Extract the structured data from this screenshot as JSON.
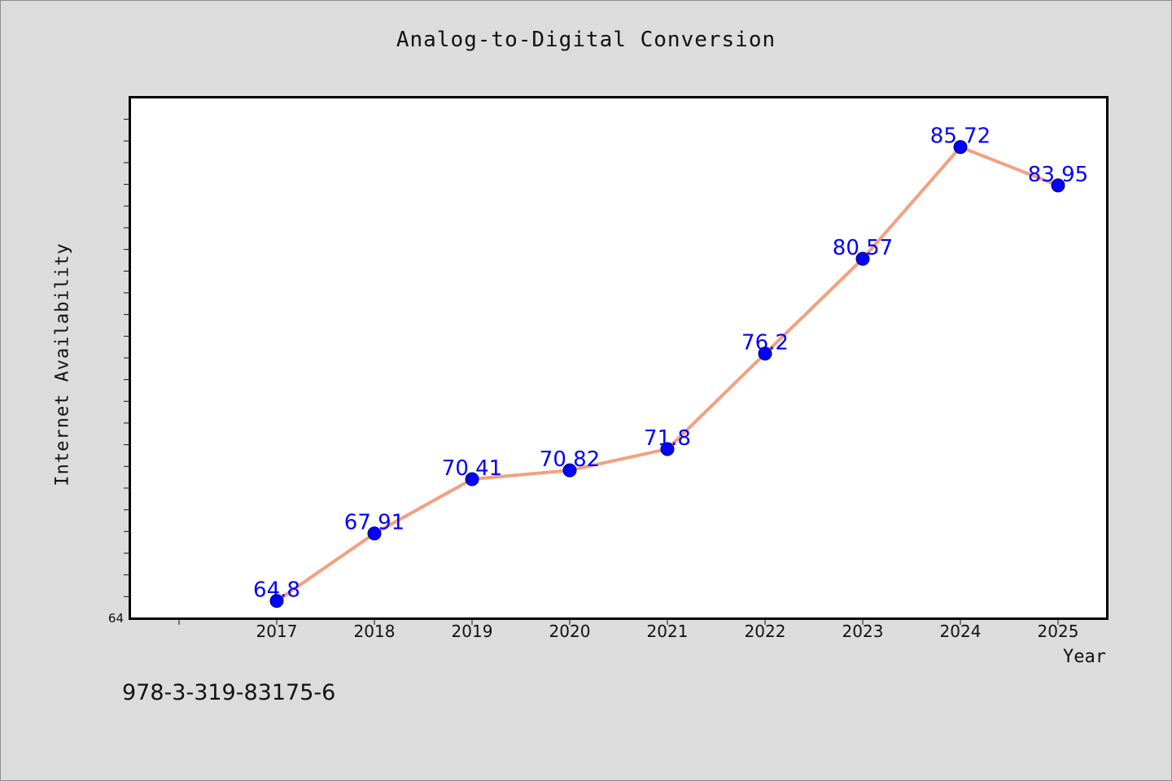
{
  "chart_data": {
    "type": "line",
    "title": "Analog-to-Digital Conversion",
    "xlabel": "Year",
    "ylabel": "Internet Availability",
    "categories": [
      "2017",
      "2018",
      "2019",
      "2020",
      "2021",
      "2022",
      "2023",
      "2024",
      "2025"
    ],
    "values": [
      64.8,
      67.91,
      70.41,
      70.82,
      71.8,
      76.2,
      80.57,
      85.72,
      83.95
    ],
    "data_labels": [
      "64.8",
      "67.91",
      "70.41",
      "70.82",
      "71.8",
      "76.2",
      "80.57",
      "85.72",
      "83.95"
    ],
    "ylim": [
      64,
      88
    ],
    "y_tick_labels": [
      "64"
    ],
    "grid": false,
    "line_color": "#f4a07e",
    "marker_color": "#0000ff",
    "label_color": "#0000ff"
  },
  "footer": {
    "code": "978-3-319-83175-6"
  }
}
